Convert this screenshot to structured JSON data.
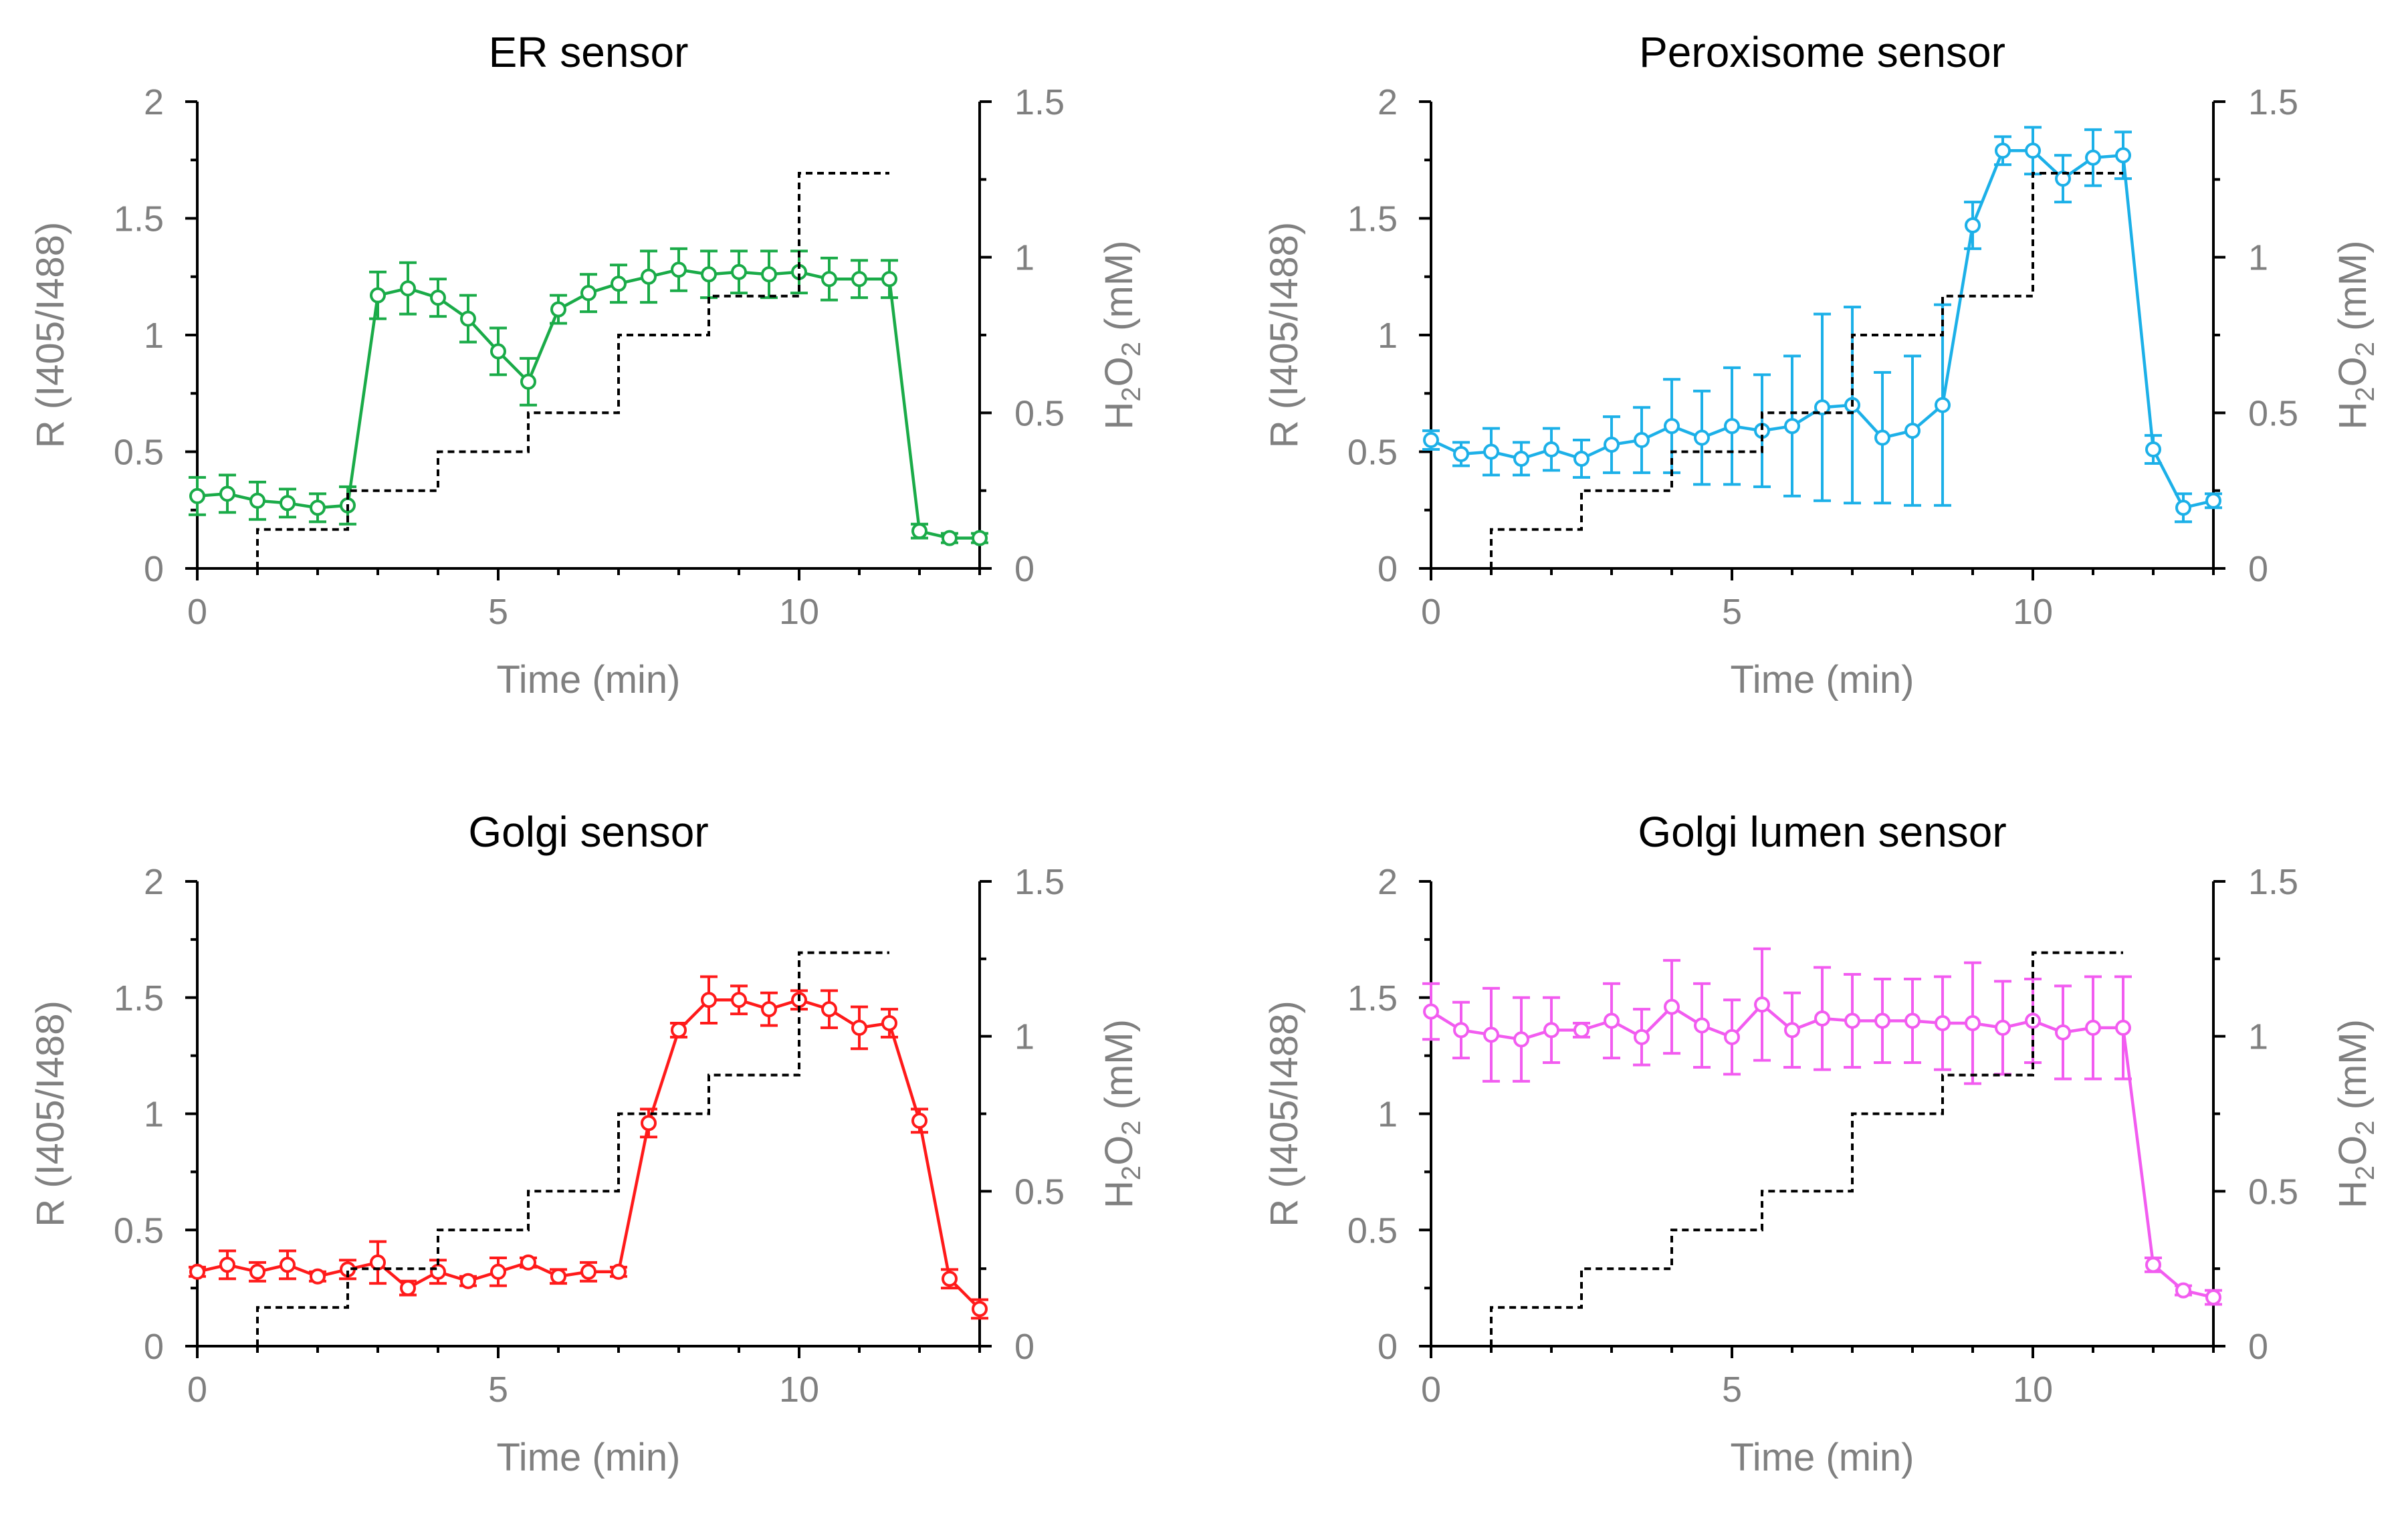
{
  "chart_data": [
    {
      "type": "line",
      "title": "ER sensor",
      "xlabel": "Time (min)",
      "ylabel": "R (I405/I488)",
      "y2label_parts": [
        "H",
        "2",
        "O",
        "2",
        " (mM)"
      ],
      "xlim": [
        0,
        13
      ],
      "ylim": [
        0,
        2
      ],
      "y2lim": [
        0,
        1.5
      ],
      "xticks": [
        "0",
        "5",
        "10"
      ],
      "yticks": [
        "0",
        "0.5",
        "1",
        "1.5",
        "2"
      ],
      "y2ticks": [
        "0",
        "0.5",
        "1",
        "1.5"
      ],
      "grid": false,
      "series": [
        {
          "color": "#1aab48",
          "marker": "open-circle",
          "x": [
            0,
            0.5,
            1,
            1.5,
            2,
            2.5,
            3,
            3.5,
            4,
            4.5,
            5,
            5.5,
            6,
            6.5,
            7,
            7.5,
            8,
            8.5,
            9,
            9.5,
            10,
            10.5,
            11,
            11.5,
            12,
            12.5,
            13
          ],
          "y": [
            0.31,
            0.32,
            0.29,
            0.28,
            0.26,
            0.27,
            1.17,
            1.2,
            1.16,
            1.07,
            0.93,
            0.8,
            1.11,
            1.18,
            1.22,
            1.25,
            1.28,
            1.26,
            1.27,
            1.26,
            1.27,
            1.24,
            1.24,
            1.24,
            0.16,
            0.13,
            0.13
          ],
          "err": [
            0.08,
            0.08,
            0.08,
            0.06,
            0.06,
            0.08,
            0.1,
            0.11,
            0.08,
            0.1,
            0.1,
            0.1,
            0.06,
            0.08,
            0.08,
            0.11,
            0.09,
            0.1,
            0.09,
            0.1,
            0.09,
            0.09,
            0.08,
            0.08,
            0.03,
            0.02,
            0.02
          ]
        },
        {
          "style": "dashed-step",
          "color": "#000000",
          "axis": "right",
          "x": [
            1,
            1,
            2.5,
            2.5,
            4,
            4,
            5.5,
            5.5,
            7,
            7,
            8.5,
            8.5,
            10,
            10,
            11.5
          ],
          "y": [
            0,
            0.125,
            0.125,
            0.25,
            0.25,
            0.375,
            0.375,
            0.5,
            0.5,
            0.75,
            0.75,
            0.875,
            0.875,
            1.27,
            1.27
          ]
        }
      ]
    },
    {
      "type": "line",
      "title": "Peroxisome sensor",
      "xlabel": "Time (min)",
      "ylabel": "R (I405/I488)",
      "y2label_parts": [
        "H",
        "2",
        "O",
        "2",
        " (mM)"
      ],
      "xlim": [
        0,
        13
      ],
      "ylim": [
        0,
        2
      ],
      "y2lim": [
        0,
        1.5
      ],
      "xticks": [
        "0",
        "5",
        "10"
      ],
      "yticks": [
        "0",
        "0.5",
        "1",
        "1.5",
        "2"
      ],
      "y2ticks": [
        "0",
        "0.5",
        "1",
        "1.5"
      ],
      "grid": false,
      "series": [
        {
          "color": "#1cb0e8",
          "marker": "open-circle",
          "x": [
            0,
            0.5,
            1,
            1.5,
            2,
            2.5,
            3,
            3.5,
            4,
            4.5,
            5,
            5.5,
            6,
            6.5,
            7,
            7.5,
            8,
            8.5,
            9,
            9.5,
            10,
            10.5,
            11,
            11.5,
            12,
            12.5,
            13
          ],
          "y": [
            0.55,
            0.49,
            0.5,
            0.47,
            0.51,
            0.47,
            0.53,
            0.55,
            0.61,
            0.56,
            0.61,
            0.59,
            0.61,
            0.69,
            0.7,
            0.56,
            0.59,
            0.7,
            1.47,
            1.79,
            1.79,
            1.67,
            1.76,
            1.77,
            0.51,
            0.26,
            0.29
          ],
          "err": [
            0.04,
            0.05,
            0.1,
            0.07,
            0.09,
            0.08,
            0.12,
            0.14,
            0.2,
            0.2,
            0.25,
            0.24,
            0.3,
            0.4,
            0.42,
            0.28,
            0.32,
            0.43,
            0.1,
            0.06,
            0.1,
            0.1,
            0.12,
            0.1,
            0.06,
            0.06,
            0.03
          ]
        },
        {
          "style": "dashed-step",
          "color": "#000000",
          "axis": "right",
          "x": [
            1,
            1,
            2.5,
            2.5,
            4,
            4,
            5.5,
            5.5,
            7,
            7,
            8.5,
            8.5,
            10,
            10,
            11.5
          ],
          "y": [
            0,
            0.125,
            0.125,
            0.25,
            0.25,
            0.375,
            0.375,
            0.5,
            0.5,
            0.75,
            0.75,
            0.875,
            0.875,
            1.27,
            1.27
          ]
        }
      ]
    },
    {
      "type": "line",
      "title": "Golgi sensor",
      "xlabel": "Time (min)",
      "ylabel": "R (I405/I488)",
      "y2label_parts": [
        "H",
        "2",
        "O",
        "2",
        " (mM)"
      ],
      "xlim": [
        0,
        13
      ],
      "ylim": [
        0,
        2
      ],
      "y2lim": [
        0,
        1.5
      ],
      "xticks": [
        "0",
        "5",
        "10"
      ],
      "yticks": [
        "0",
        "0.5",
        "1",
        "1.5",
        "2"
      ],
      "y2ticks": [
        "0",
        "0.5",
        "1",
        "1.5"
      ],
      "grid": false,
      "series": [
        {
          "color": "#ff1a1a",
          "marker": "open-circle",
          "x": [
            0,
            0.5,
            1,
            1.5,
            2,
            2.5,
            3,
            3.5,
            4,
            4.5,
            5,
            5.5,
            6,
            6.5,
            7,
            7.5,
            8,
            8.5,
            9,
            9.5,
            10,
            10.5,
            11,
            11.5,
            12,
            12.5,
            13
          ],
          "y": [
            0.32,
            0.35,
            0.32,
            0.35,
            0.3,
            0.33,
            0.36,
            0.25,
            0.32,
            0.28,
            0.32,
            0.36,
            0.3,
            0.32,
            0.32,
            0.96,
            1.36,
            1.49,
            1.49,
            1.45,
            1.49,
            1.45,
            1.37,
            1.39,
            0.97,
            0.29,
            0.16
          ],
          "err": [
            0.02,
            0.06,
            0.04,
            0.06,
            0.02,
            0.04,
            0.09,
            0.03,
            0.05,
            0.02,
            0.06,
            0.02,
            0.03,
            0.04,
            0.02,
            0.06,
            0.03,
            0.1,
            0.06,
            0.07,
            0.04,
            0.08,
            0.09,
            0.06,
            0.05,
            0.04,
            0.04
          ]
        },
        {
          "style": "dashed-step",
          "color": "#000000",
          "axis": "right",
          "x": [
            1,
            1,
            2.5,
            2.5,
            4,
            4,
            5.5,
            5.5,
            7,
            7,
            8.5,
            8.5,
            10,
            10,
            11.5
          ],
          "y": [
            0,
            0.125,
            0.125,
            0.25,
            0.25,
            0.375,
            0.375,
            0.5,
            0.5,
            0.75,
            0.75,
            0.875,
            0.875,
            1.27,
            1.27
          ]
        }
      ]
    },
    {
      "type": "line",
      "title": "Golgi lumen sensor",
      "xlabel": "Time (min)",
      "ylabel": "R (I405/I488)",
      "y2label_parts": [
        "H",
        "2",
        "O",
        "2",
        " (mM)"
      ],
      "xlim": [
        0,
        13
      ],
      "ylim": [
        0,
        2
      ],
      "y2lim": [
        0,
        1.5
      ],
      "xticks": [
        "0",
        "5",
        "10"
      ],
      "yticks": [
        "0",
        "0.5",
        "1",
        "1.5",
        "2"
      ],
      "y2ticks": [
        "0",
        "0.5",
        "1",
        "1.5"
      ],
      "grid": false,
      "series": [
        {
          "color": "#f25cf0",
          "marker": "open-circle",
          "x": [
            0,
            0.5,
            1,
            1.5,
            2,
            2.5,
            3,
            3.5,
            4,
            4.5,
            5,
            5.5,
            6,
            6.5,
            7,
            7.5,
            8,
            8.5,
            9,
            9.5,
            10,
            10.5,
            11,
            11.5,
            12,
            12.5,
            13
          ],
          "y": [
            1.44,
            1.36,
            1.34,
            1.32,
            1.36,
            1.36,
            1.4,
            1.33,
            1.46,
            1.38,
            1.33,
            1.47,
            1.36,
            1.41,
            1.4,
            1.4,
            1.4,
            1.39,
            1.39,
            1.37,
            1.4,
            1.35,
            1.37,
            1.37,
            0.35,
            0.24,
            0.21
          ],
          "err": [
            0.12,
            0.12,
            0.2,
            0.18,
            0.14,
            0.03,
            0.16,
            0.12,
            0.2,
            0.18,
            0.16,
            0.24,
            0.16,
            0.22,
            0.2,
            0.18,
            0.18,
            0.2,
            0.26,
            0.2,
            0.18,
            0.2,
            0.22,
            0.22,
            0.03,
            0.02,
            0.03
          ]
        },
        {
          "style": "dashed-step",
          "color": "#000000",
          "axis": "right",
          "x": [
            1,
            1,
            2.5,
            2.5,
            4,
            4,
            5.5,
            5.5,
            7,
            7,
            8.5,
            8.5,
            10,
            10,
            11.5
          ],
          "y": [
            0,
            0.125,
            0.125,
            0.25,
            0.25,
            0.375,
            0.375,
            0.5,
            0.5,
            0.75,
            0.75,
            0.875,
            0.875,
            1.27,
            1.27
          ]
        }
      ]
    }
  ]
}
